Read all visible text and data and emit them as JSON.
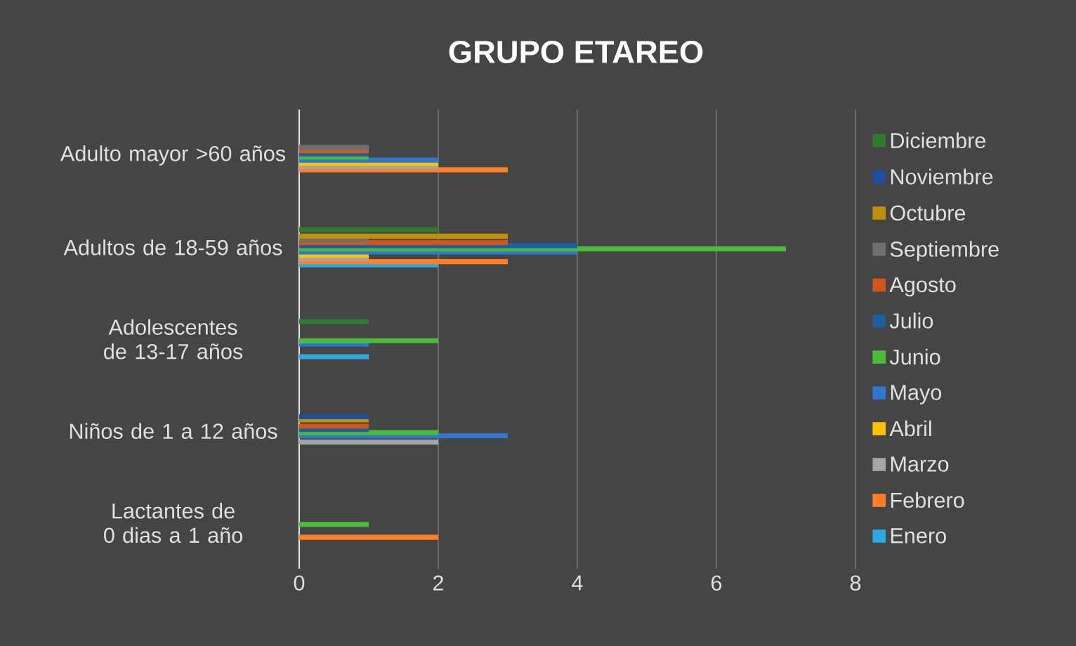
{
  "chart_data": {
    "type": "bar",
    "orientation": "horizontal",
    "title": "GRUPO ETAREO",
    "categories": [
      "Adulto mayor >60 años",
      "Adultos de 18-59 años",
      "Adolescentes de 13-17 años",
      "Niños de 1 a 12 años",
      "Lactantes de 0 dias a 1 año"
    ],
    "series": [
      {
        "name": "Enero",
        "color": "#2ea8e0",
        "values": [
          0,
          2,
          1,
          0,
          0
        ]
      },
      {
        "name": "Febrero",
        "color": "#ff7f27",
        "values": [
          3,
          3,
          0,
          0,
          2
        ]
      },
      {
        "name": "Marzo",
        "color": "#a5a5a5",
        "values": [
          2,
          1,
          0,
          2,
          0
        ]
      },
      {
        "name": "Abril",
        "color": "#ffc000",
        "values": [
          2,
          1,
          0,
          0,
          0
        ]
      },
      {
        "name": "Mayo",
        "color": "#2f77d0",
        "values": [
          2,
          4,
          1,
          3,
          0
        ]
      },
      {
        "name": "Junio",
        "color": "#4cbb3c",
        "values": [
          1,
          7,
          2,
          2,
          1
        ]
      },
      {
        "name": "Julio",
        "color": "#1f5f9f",
        "values": [
          1,
          4,
          0,
          1,
          0
        ]
      },
      {
        "name": "Agosto",
        "color": "#d0561c",
        "values": [
          1,
          3,
          0,
          1,
          0
        ]
      },
      {
        "name": "Septiembre",
        "color": "#6f6f6f",
        "values": [
          1,
          1,
          0,
          0,
          0
        ]
      },
      {
        "name": "Octubre",
        "color": "#c0900a",
        "values": [
          0,
          3,
          0,
          1,
          0
        ]
      },
      {
        "name": "Noviembre",
        "color": "#1f4e9f",
        "values": [
          0,
          0,
          0,
          1,
          0
        ]
      },
      {
        "name": "Diciembre",
        "color": "#2f7a2f",
        "values": [
          0,
          2,
          1,
          0,
          0
        ]
      }
    ],
    "xlim": [
      0,
      8
    ],
    "xticks": [
      0,
      2,
      4,
      6,
      8
    ],
    "grid": "x",
    "legend": "right"
  }
}
